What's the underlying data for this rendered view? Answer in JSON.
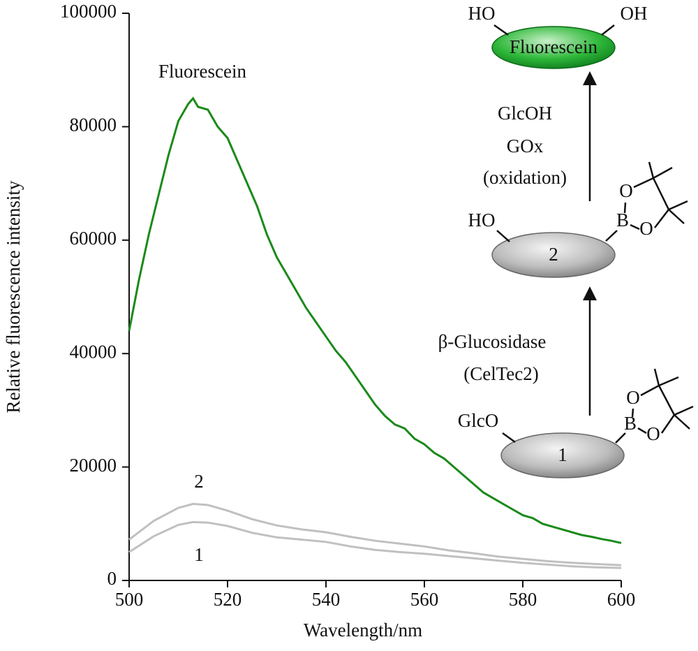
{
  "chart_data": {
    "type": "line",
    "xlabel": "Wavelength/nm",
    "ylabel": "Relative fluorescence intensity",
    "xlim": [
      500,
      600
    ],
    "xticks": [
      500,
      520,
      540,
      560,
      580,
      600
    ],
    "ylim": [
      0,
      100000
    ],
    "yticks": [
      0,
      20000,
      40000,
      60000,
      80000,
      100000
    ],
    "series": [
      {
        "name": "Fluorescein",
        "color": "#1a8a1a",
        "x": [
          500,
          502,
          504,
          506,
          508,
          510,
          512,
          513,
          514,
          516,
          518,
          520,
          522,
          524,
          526,
          528,
          530,
          532,
          534,
          536,
          538,
          540,
          542,
          544,
          546,
          548,
          550,
          552,
          554,
          556,
          558,
          560,
          562,
          564,
          566,
          568,
          570,
          572,
          574,
          576,
          578,
          580,
          582,
          584,
          586,
          588,
          590,
          592,
          594,
          596,
          598,
          600
        ],
        "values": [
          44000,
          53000,
          61000,
          68000,
          75000,
          81000,
          84000,
          85000,
          83500,
          83000,
          80000,
          78000,
          74000,
          70000,
          66000,
          61000,
          57000,
          54000,
          51000,
          48000,
          45500,
          43000,
          40500,
          38500,
          36000,
          33500,
          31000,
          29000,
          27500,
          26800,
          25000,
          24000,
          22500,
          21500,
          20000,
          18500,
          17000,
          15500,
          14500,
          13500,
          12500,
          11500,
          11000,
          10000,
          9500,
          9000,
          8500,
          8000,
          7700,
          7300,
          7000,
          6600
        ]
      },
      {
        "name": "2",
        "color": "#c0c0c0",
        "x": [
          500,
          505,
          510,
          513,
          516,
          520,
          525,
          530,
          535,
          540,
          545,
          550,
          555,
          560,
          565,
          570,
          575,
          580,
          585,
          590,
          595,
          600
        ],
        "values": [
          7200,
          10500,
          12800,
          13500,
          13300,
          12300,
          10800,
          9700,
          9000,
          8500,
          7700,
          7000,
          6500,
          6000,
          5300,
          4800,
          4200,
          3800,
          3400,
          3100,
          2900,
          2700
        ]
      },
      {
        "name": "1",
        "color": "#c0c0c0",
        "x": [
          500,
          505,
          510,
          513,
          516,
          520,
          525,
          530,
          535,
          540,
          545,
          550,
          555,
          560,
          565,
          570,
          575,
          580,
          585,
          590,
          595,
          600
        ],
        "values": [
          5000,
          7800,
          9800,
          10300,
          10200,
          9600,
          8400,
          7600,
          7200,
          6800,
          6000,
          5400,
          5000,
          4700,
          4300,
          3900,
          3500,
          3100,
          2800,
          2500,
          2300,
          2200
        ]
      }
    ]
  },
  "scheme": {
    "fluorescein": {
      "left": "HO",
      "right": "OH",
      "label": "Fluorescein"
    },
    "step2": [
      "GlcOH",
      "GOx",
      "(oxidation)"
    ],
    "compound2": {
      "left": "HO",
      "label": "2",
      "boron": "B",
      "o1": "O",
      "o2": "O"
    },
    "step1": [
      "β-Glucosidase",
      "(CelTec2)"
    ],
    "compound1": {
      "left": "GlcO",
      "label": "1",
      "boron": "B",
      "o1": "O",
      "o2": "O"
    }
  }
}
